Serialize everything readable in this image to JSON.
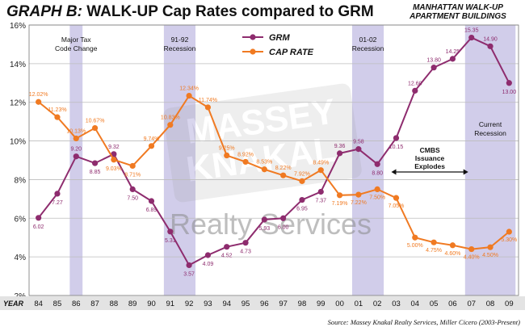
{
  "header": {
    "title_prefix": "GRAPH B:",
    "title_main": "WALK-UP Cap Rates compared to GRM",
    "subtitle_line1": "MANHATTAN WALK-UP",
    "subtitle_line2": "APARTMENT BUILDINGS"
  },
  "source": "Source: Massey Knakal Realty Services, Miller Cicero (2003-Present)",
  "watermark": {
    "logo_text_1": "MASSEY",
    "logo_text_2": "KNAKAL",
    "tagline": "Realty Services"
  },
  "colors": {
    "grm": "#8e2c6e",
    "cap_rate": "#f07a22",
    "shade": "#c9c4e6",
    "grid": "#bdbdbd",
    "year_bar": "#e3e3e3"
  },
  "chart_data": {
    "type": "line",
    "title": "WALK-UP Cap Rates compared to GRM",
    "xlabel": "YEAR",
    "categories": [
      "84",
      "85",
      "86",
      "87",
      "88",
      "89",
      "90",
      "91",
      "92",
      "93",
      "94",
      "95",
      "96",
      "97",
      "98",
      "99",
      "00",
      "01",
      "02",
      "03",
      "04",
      "05",
      "06",
      "07",
      "08",
      "09"
    ],
    "ylim": [
      2,
      16
    ],
    "y_ticks": [
      "2%",
      "4%",
      "6%",
      "8%",
      "10%",
      "12%",
      "14%",
      "16%"
    ],
    "grid": "horizontal",
    "legend_position": "top-center",
    "series": [
      {
        "name": "GRM",
        "values": [
          6.02,
          7.27,
          9.2,
          8.85,
          9.32,
          7.5,
          6.89,
          5.31,
          3.57,
          4.09,
          4.52,
          4.73,
          5.93,
          6.0,
          6.95,
          7.37,
          9.36,
          9.58,
          8.8,
          10.15,
          12.6,
          13.8,
          14.25,
          15.35,
          14.9,
          13.0
        ],
        "labels": [
          "6.02",
          "7.27",
          "9.20",
          "8.85",
          "9.32",
          "7.50",
          "6.89",
          "5.31",
          "3.57",
          "4.09",
          "4.52",
          "4.73",
          "5.93",
          "6.00",
          "6.95",
          "7.37",
          "9.36",
          "9.58",
          "8.80",
          "10.15",
          "12.60",
          "13.80",
          "14.25",
          "15.35",
          "14.90",
          "13.00"
        ]
      },
      {
        "name": "CAP RATE",
        "values": [
          12.02,
          11.23,
          10.13,
          10.67,
          9.03,
          8.71,
          9.74,
          10.83,
          12.34,
          11.74,
          9.25,
          8.92,
          8.53,
          8.22,
          7.92,
          8.49,
          7.19,
          7.22,
          7.5,
          7.05,
          5.0,
          4.75,
          4.6,
          4.4,
          4.5,
          5.3
        ],
        "labels": [
          "12.02%",
          "11.23%",
          "10.13%",
          "10.67%",
          "9.03%",
          "8.71%",
          "9.74%",
          "10.83%",
          "12.34%",
          "11.74%",
          "9.25%",
          "8.92%",
          "8.53%",
          "8.22%",
          "7.92%",
          "8.49%",
          "7.19%",
          "7.22%",
          "7.50%",
          "7.05%",
          "5.00%",
          "4.75%",
          "4.60%",
          "4.40%",
          "4.50%",
          "5.30%"
        ]
      }
    ],
    "shaded_periods": [
      {
        "from": "86",
        "to": "86",
        "label_lines": [
          "Major Tax",
          "Code Change"
        ]
      },
      {
        "from": "91",
        "to": "92",
        "label_lines": [
          "91-92",
          "Recession"
        ]
      },
      {
        "from": "01",
        "to": "02",
        "label_lines": [
          "01-02",
          "Recession"
        ]
      },
      {
        "from": "07",
        "to": "09",
        "label_lines": [
          "Current",
          "Recession"
        ]
      }
    ],
    "annotations": [
      {
        "text_lines": [
          "CMBS",
          "Issuance",
          "Explodes"
        ],
        "arrow_from": "03",
        "arrow_to": "07"
      }
    ]
  }
}
